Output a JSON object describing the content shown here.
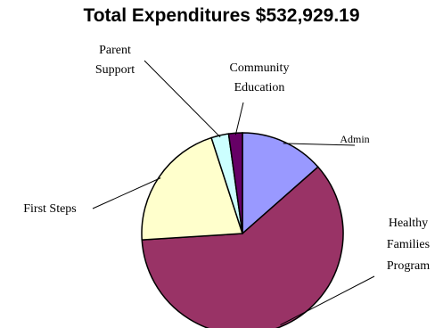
{
  "chart_data": {
    "type": "pie",
    "title": "Total Expenditures $532,929.19",
    "slices": [
      {
        "label": "Admin",
        "value": 13.5,
        "color": "#9999FF"
      },
      {
        "label": "Healthy Families Program",
        "value": 60.5,
        "color": "#993366"
      },
      {
        "label": "First Steps",
        "value": 21.0,
        "color": "#FFFFCC"
      },
      {
        "label": "Parent Support",
        "value": 2.8,
        "color": "#CCFFFF"
      },
      {
        "label": "Community Education",
        "value": 2.2,
        "color": "#660066"
      }
    ],
    "legend": "none",
    "labels": "outside-with-leader-lines"
  }
}
